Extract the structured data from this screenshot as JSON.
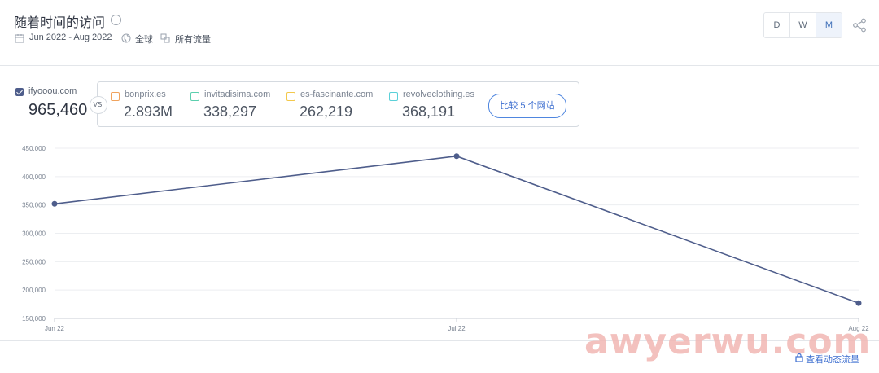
{
  "header": {
    "title": "随着时间的访问",
    "date_range": "Jun 2022 - Aug 2022",
    "region": "全球",
    "traffic_type": "所有流量",
    "granularity": [
      "D",
      "W",
      "M"
    ],
    "granularity_selected": "M"
  },
  "main_site": {
    "name": "ifyooou.com",
    "value": "965,460",
    "color": "#4e5d8b"
  },
  "vs_label": "VS.",
  "competitors": [
    {
      "name": "bonprix.es",
      "value": "2.893M",
      "color": "#f0a35e"
    },
    {
      "name": "invitadisima.com",
      "value": "338,297",
      "color": "#5ccfae"
    },
    {
      "name": "es-fascinante.com",
      "value": "262,219",
      "color": "#f3c84b"
    },
    {
      "name": "revolveclothing.es",
      "value": "368,191",
      "color": "#5ad0d8"
    }
  ],
  "compare_button": "比较 5 个网站",
  "footer_link": "查看动态流量",
  "watermark": "awyerwu.com",
  "chart_data": {
    "type": "line",
    "categories": [
      "Jun 22",
      "Jul 22",
      "Aug 22"
    ],
    "series": [
      {
        "name": "ifyooou.com",
        "values": [
          352000,
          436000,
          177000
        ],
        "color": "#4e5d8b"
      }
    ],
    "yticks": [
      "150,000",
      "200,000",
      "250,000",
      "300,000",
      "350,000",
      "400,000",
      "450,000"
    ],
    "ylim": [
      150000,
      450000
    ],
    "grid": true,
    "xlabel": "",
    "ylabel": ""
  }
}
